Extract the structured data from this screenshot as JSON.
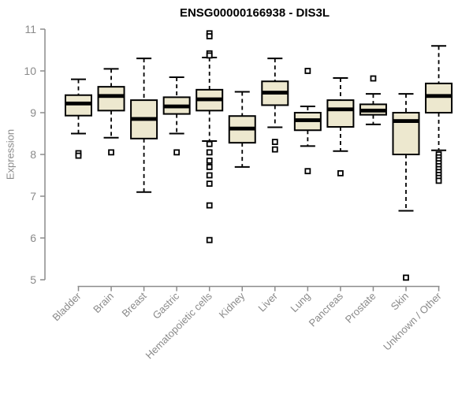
{
  "chart_data": {
    "type": "boxplot",
    "title": "ENSG00000166938 - DIS3L",
    "ylabel": "Expression",
    "xlabel": "",
    "ylim": [
      5,
      11
    ],
    "yticks": [
      5,
      6,
      7,
      8,
      9,
      10,
      11
    ],
    "grid": false,
    "legend": "none",
    "colors": {
      "box_fill": "#EDE8CF",
      "box_stroke": "#000000",
      "median": "#000000",
      "axis": "#8c8c8c",
      "tick_label": "#8a8a8a",
      "title": "#000000"
    },
    "categories": [
      "Bladder",
      "Brain",
      "Breast",
      "Gastric",
      "Hematopoietic cells",
      "Kidney",
      "Liver",
      "Lung",
      "Pancreas",
      "Prostate",
      "Skin",
      "Unknown / Other"
    ],
    "series": [
      {
        "name": "Bladder",
        "whisker_low": 8.5,
        "q1": 8.93,
        "median": 9.22,
        "q3": 9.42,
        "whisker_high": 9.8,
        "outliers": [
          8.03,
          7.97
        ]
      },
      {
        "name": "Brain",
        "whisker_low": 8.4,
        "q1": 9.05,
        "median": 9.4,
        "q3": 9.62,
        "whisker_high": 10.05,
        "outliers": [
          8.05
        ]
      },
      {
        "name": "Breast",
        "whisker_low": 7.1,
        "q1": 8.38,
        "median": 8.85,
        "q3": 9.3,
        "whisker_high": 10.3,
        "outliers": []
      },
      {
        "name": "Gastric",
        "whisker_low": 8.5,
        "q1": 8.97,
        "median": 9.15,
        "q3": 9.37,
        "whisker_high": 9.85,
        "outliers": [
          8.05
        ]
      },
      {
        "name": "Hematopoietic cells",
        "whisker_low": 8.32,
        "q1": 9.05,
        "median": 9.32,
        "q3": 9.55,
        "whisker_high": 10.32,
        "outliers": [
          10.9,
          10.83,
          10.42,
          10.37,
          8.25,
          8.05,
          7.85,
          7.7,
          7.5,
          7.3,
          6.78,
          5.95
        ]
      },
      {
        "name": "Kidney",
        "whisker_low": 7.7,
        "q1": 8.28,
        "median": 8.62,
        "q3": 8.92,
        "whisker_high": 9.5,
        "outliers": []
      },
      {
        "name": "Liver",
        "whisker_low": 8.65,
        "q1": 9.18,
        "median": 9.48,
        "q3": 9.75,
        "whisker_high": 10.3,
        "outliers": [
          8.3,
          8.12
        ]
      },
      {
        "name": "Lung",
        "whisker_low": 8.2,
        "q1": 8.58,
        "median": 8.82,
        "q3": 9.0,
        "whisker_high": 9.15,
        "outliers": [
          10.0,
          7.6
        ]
      },
      {
        "name": "Pancreas",
        "whisker_low": 8.08,
        "q1": 8.66,
        "median": 9.08,
        "q3": 9.3,
        "whisker_high": 9.83,
        "outliers": [
          7.55
        ]
      },
      {
        "name": "Prostate",
        "whisker_low": 8.72,
        "q1": 8.95,
        "median": 9.05,
        "q3": 9.2,
        "whisker_high": 9.45,
        "outliers": [
          9.82
        ]
      },
      {
        "name": "Skin",
        "whisker_low": 6.65,
        "q1": 8.0,
        "median": 8.8,
        "q3": 9.0,
        "whisker_high": 9.45,
        "outliers": [
          5.05
        ]
      },
      {
        "name": "Unknown / Other",
        "whisker_low": 8.1,
        "q1": 9.0,
        "median": 9.4,
        "q3": 9.7,
        "whisker_high": 10.6,
        "outliers": [
          8.0,
          7.93,
          7.86,
          7.79,
          7.72,
          7.65,
          7.58,
          7.51,
          7.44,
          7.37
        ]
      }
    ]
  }
}
